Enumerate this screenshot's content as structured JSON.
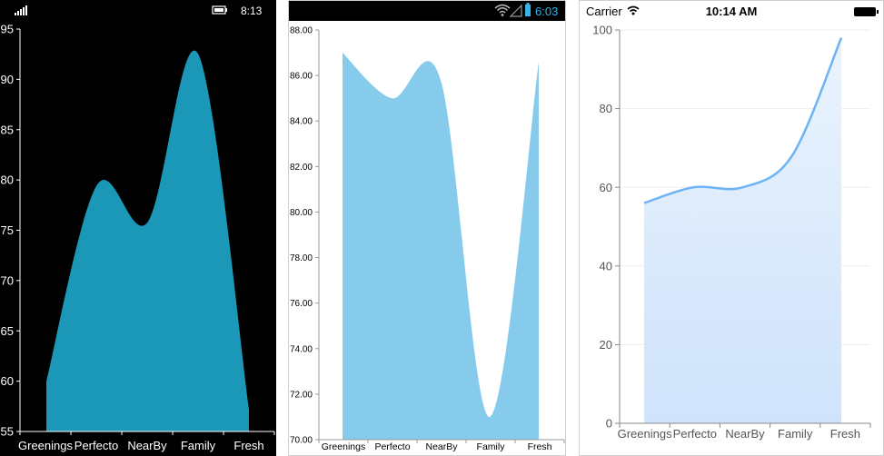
{
  "phones": [
    {
      "status": {
        "time": "8:13",
        "icons": [
          "signal-bars-icon",
          "battery-icon"
        ]
      },
      "chart_data": {
        "type": "area",
        "smooth": true,
        "categories": [
          "Greenings",
          "Perfecto",
          "NearBy",
          "Family",
          "Fresh"
        ],
        "series": [
          {
            "values": [
              60,
              79.5,
              75.8,
              92.5,
              57.2
            ]
          }
        ],
        "ylim": [
          55,
          95
        ],
        "yticks": [
          "95",
          "90",
          "85",
          "80",
          "75",
          "70",
          "65",
          "60",
          "55"
        ],
        "colors": {
          "background": "#000000",
          "fill": "#1b98b8",
          "text": "#ffffff"
        },
        "grid": false
      }
    },
    {
      "status": {
        "time": "6:03",
        "icons": [
          "wifi-icon",
          "signal-icon",
          "battery-icon"
        ]
      },
      "chart_data": {
        "type": "area",
        "smooth": true,
        "categories": [
          "Greenings",
          "Perfecto",
          "NearBy",
          "Family",
          "Fresh"
        ],
        "series": [
          {
            "values": [
              87,
              85,
              85.8,
              71,
              86.6
            ]
          }
        ],
        "ylim": [
          70,
          88
        ],
        "yticks": [
          "88.00",
          "86.00",
          "84.00",
          "82.00",
          "80.00",
          "78.00",
          "76.00",
          "74.00",
          "72.00",
          "70.00"
        ],
        "colors": {
          "background": "#ffffff",
          "fill": "#87cbec",
          "text": "#000000"
        },
        "grid": false
      }
    },
    {
      "status": {
        "carrier": "Carrier",
        "time": "10:14 AM",
        "icons": [
          "wifi-icon",
          "battery-icon"
        ]
      },
      "chart_data": {
        "type": "area",
        "smooth": true,
        "categories": [
          "Greenings",
          "Perfecto",
          "NearBy",
          "Family",
          "Fresh"
        ],
        "series": [
          {
            "values": [
              56,
              60,
              60,
              68,
              98
            ]
          }
        ],
        "ylim": [
          0,
          100
        ],
        "yticks": [
          "100",
          "80",
          "60",
          "40",
          "20",
          "0"
        ],
        "colors": {
          "background": "#ffffff",
          "fill_top": "#eaf3fd",
          "fill_bottom": "#cfe3fb",
          "line": "#6cb4f5",
          "text": "#555555",
          "grid": "#eeeeee"
        },
        "grid": true
      }
    }
  ]
}
